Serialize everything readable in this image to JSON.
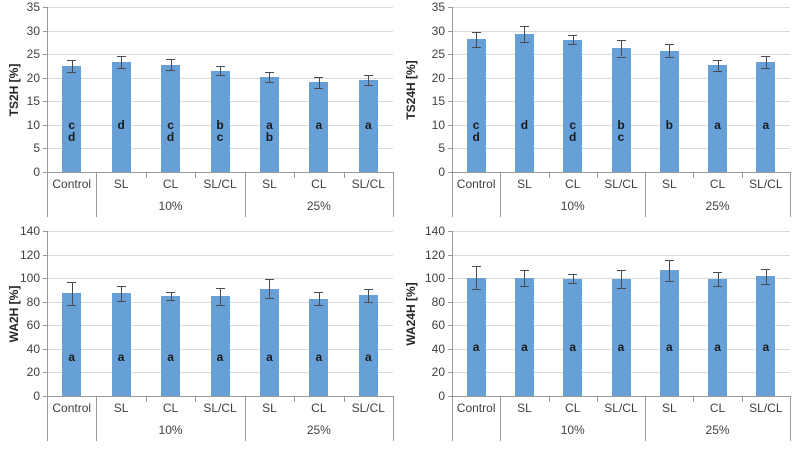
{
  "style": {
    "background": "#FFFFFF",
    "bar_color": "#67A0D6",
    "error_bar_color": "#4A4A52",
    "gridline_color": "#D9D9D9",
    "axis_line_color": "#9A9A9A",
    "tick_label_color": "#404040",
    "axis_title_color": "#262626",
    "letter_color": "#1A1A1A"
  },
  "chart_data": [
    {
      "id": "ts2h",
      "type": "bar",
      "title": "",
      "ylabel": "TS2H [%]",
      "xlabel": "",
      "ylim": [
        0,
        35
      ],
      "ytick_step": 5,
      "yticks": [
        "35",
        "30",
        "25",
        "20",
        "15",
        "10",
        "5",
        "0"
      ],
      "grid": true,
      "legend": false,
      "categories": [
        "Control",
        "SL",
        "CL",
        "SL/CL",
        "SL",
        "CL",
        "SL/CL"
      ],
      "groups": [
        {
          "label": "10%",
          "start": 1,
          "end": 3
        },
        {
          "label": "25%",
          "start": 4,
          "end": 6
        }
      ],
      "values": [
        22.5,
        23.3,
        22.8,
        21.5,
        20.1,
        19.0,
        19.5
      ],
      "errors": [
        1.3,
        1.3,
        1.1,
        1.0,
        1.1,
        1.2,
        1.0
      ],
      "sig_letters": [
        [
          "c",
          "d"
        ],
        [
          "d"
        ],
        [
          "c",
          "d"
        ],
        [
          "b",
          "c"
        ],
        [
          "a",
          "b"
        ],
        [
          "a"
        ],
        [
          "a"
        ]
      ],
      "letters_top_value": 11.3
    },
    {
      "id": "ts24h",
      "type": "bar",
      "title": "",
      "ylabel": "TS24H [%]",
      "xlabel": "",
      "ylim": [
        0,
        35
      ],
      "ytick_step": 5,
      "yticks": [
        "35",
        "30",
        "25",
        "20",
        "15",
        "10",
        "5",
        "0"
      ],
      "grid": true,
      "legend": false,
      "categories": [
        "Control",
        "SL",
        "CL",
        "SL/CL",
        "SL",
        "CL",
        "SL/CL"
      ],
      "groups": [
        {
          "label": "10%",
          "start": 1,
          "end": 3
        },
        {
          "label": "25%",
          "start": 4,
          "end": 6
        }
      ],
      "values": [
        28.2,
        29.3,
        28.1,
        26.2,
        25.7,
        22.6,
        23.3
      ],
      "errors": [
        1.6,
        1.7,
        1.0,
        1.7,
        1.4,
        1.1,
        1.3
      ],
      "sig_letters": [
        [
          "c",
          "d"
        ],
        [
          "d"
        ],
        [
          "c",
          "d"
        ],
        [
          "b",
          "c"
        ],
        [
          "b"
        ],
        [
          "a"
        ],
        [
          "a"
        ]
      ],
      "letters_top_value": 11.3
    },
    {
      "id": "wa2h",
      "type": "bar",
      "title": "",
      "ylabel": "WA2H [%]",
      "xlabel": "",
      "ylim": [
        0,
        140
      ],
      "ytick_step": 20,
      "yticks": [
        "140",
        "120",
        "100",
        "80",
        "60",
        "40",
        "20",
        "0"
      ],
      "grid": true,
      "legend": false,
      "categories": [
        "Control",
        "SL",
        "CL",
        "SL/CL",
        "SL",
        "CL",
        "SL/CL"
      ],
      "groups": [
        {
          "label": "10%",
          "start": 1,
          "end": 3
        },
        {
          "label": "25%",
          "start": 4,
          "end": 6
        }
      ],
      "values": [
        87,
        87,
        85,
        84.5,
        91,
        82.5,
        85.5
      ],
      "errors": [
        9.5,
        6,
        3.5,
        7,
        8,
        5.5,
        5.5
      ],
      "sig_letters": [
        [
          "a"
        ],
        [
          "a"
        ],
        [
          "a"
        ],
        [
          "a"
        ],
        [
          "a"
        ],
        [
          "a"
        ],
        [
          "a"
        ]
      ],
      "letters_top_value": 38
    },
    {
      "id": "wa24h",
      "type": "bar",
      "title": "",
      "ylabel": "WA24H [%]",
      "xlabel": "",
      "ylim": [
        0,
        140
      ],
      "ytick_step": 20,
      "yticks": [
        "140",
        "120",
        "100",
        "80",
        "60",
        "40",
        "20",
        "0"
      ],
      "grid": true,
      "legend": false,
      "categories": [
        "Control",
        "SL",
        "CL",
        "SL/CL",
        "SL",
        "CL",
        "SL/CL"
      ],
      "groups": [
        {
          "label": "10%",
          "start": 1,
          "end": 3
        },
        {
          "label": "25%",
          "start": 4,
          "end": 6
        }
      ],
      "values": [
        100.5,
        100,
        99.5,
        99,
        106.5,
        99,
        101.5
      ],
      "errors": [
        10,
        7,
        4,
        7.5,
        9,
        6,
        6.5
      ],
      "sig_letters": [
        [
          "a"
        ],
        [
          "a"
        ],
        [
          "a"
        ],
        [
          "a"
        ],
        [
          "a"
        ],
        [
          "a"
        ],
        [
          "a"
        ]
      ],
      "letters_top_value": 47
    }
  ]
}
